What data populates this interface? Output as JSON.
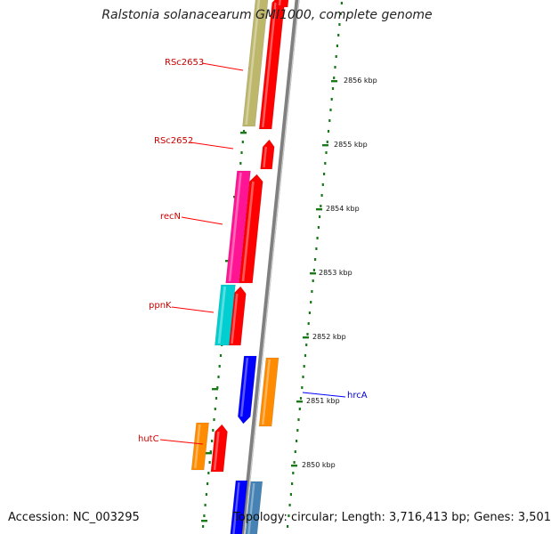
{
  "title": "Ralstonia solanacearum GMI1000, complete genome",
  "footer": {
    "accession": "Accession: NC_003295",
    "topology": "Topology: circular; Length: 3,716,413 bp; Genes: 3,501"
  },
  "colors": {
    "red": "#ff0000",
    "khaki": "#bdb76b",
    "magenta": "#ff1493",
    "cyan": "#00ced1",
    "orange": "#ff8c00",
    "blue": "#0000ff",
    "steelblue": "#4682b4",
    "backbone": "#808080",
    "ticks": "#1a7a1a",
    "label_red": "#cc0000",
    "label_blue": "#0000cc"
  },
  "kbp_ticks": [
    "2856 kbp",
    "2855 kbp",
    "2854 kbp",
    "2853 kbp",
    "2852 kbp",
    "2851 kbp",
    "2850 kbp"
  ],
  "gene_labels": [
    {
      "name": "RSc2653",
      "color": "red"
    },
    {
      "name": "RSc2652",
      "color": "red"
    },
    {
      "name": "recN",
      "color": "red"
    },
    {
      "name": "ppnK",
      "color": "red"
    },
    {
      "name": "hutC",
      "color": "red"
    },
    {
      "name": "hrcA",
      "color": "blue"
    }
  ]
}
